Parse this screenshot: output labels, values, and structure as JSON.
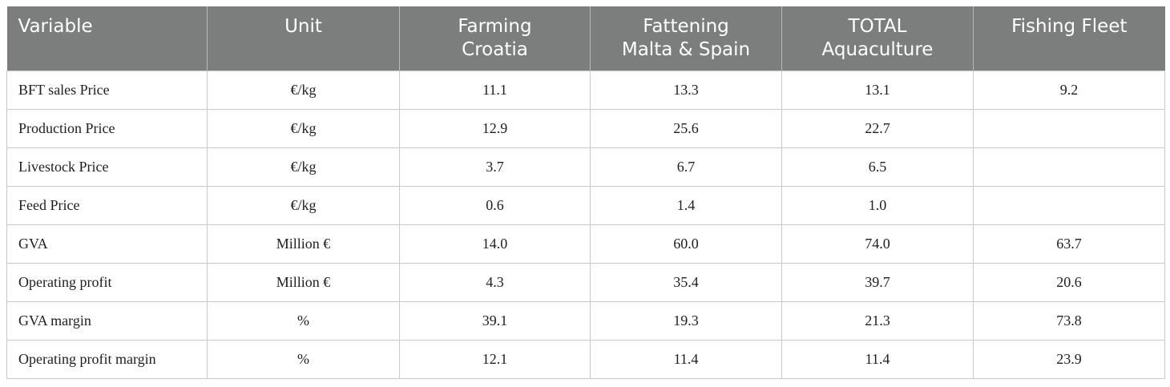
{
  "table": {
    "headers": [
      [
        "Variable"
      ],
      [
        "Unit"
      ],
      [
        "Farming",
        "Croatia"
      ],
      [
        "Fattening",
        "Malta & Spain"
      ],
      [
        "TOTAL",
        "Aquaculture"
      ],
      [
        "Fishing Fleet"
      ]
    ],
    "rows": [
      [
        "BFT sales Price",
        "€/kg",
        "11.1",
        "13.3",
        "13.1",
        "9.2"
      ],
      [
        "Production Price",
        "€/kg",
        "12.9",
        "25.6",
        "22.7",
        ""
      ],
      [
        "Livestock Price",
        "€/kg",
        "3.7",
        "6.7",
        "6.5",
        ""
      ],
      [
        "Feed Price",
        "€/kg",
        "0.6",
        "1.4",
        "1.0",
        ""
      ],
      [
        "GVA",
        "Million €",
        "14.0",
        "60.0",
        "74.0",
        "63.7"
      ],
      [
        "Operating profit",
        "Million €",
        "4.3",
        "35.4",
        "39.7",
        "20.6"
      ],
      [
        "GVA margin",
        "%",
        "39.1",
        "19.3",
        "21.3",
        "73.8"
      ],
      [
        "Operating profit margin",
        "%",
        "12.1",
        "11.4",
        "11.4",
        "23.9"
      ]
    ]
  }
}
